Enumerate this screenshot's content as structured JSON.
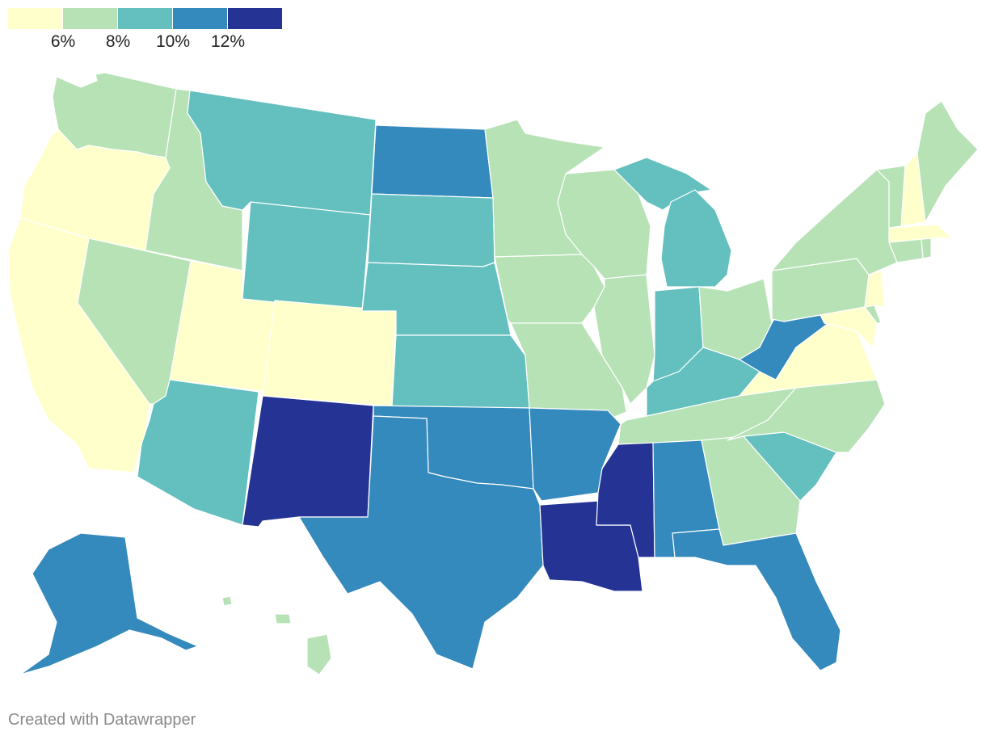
{
  "legend": {
    "colors": [
      "#ffffcc",
      "#b7e2b6",
      "#64bfbf",
      "#3489bd",
      "#253494"
    ],
    "tick_labels": [
      "6%",
      "8%",
      "10%",
      "12%"
    ]
  },
  "credit": "Created with Datawrapper",
  "states": [
    {
      "name": "Washington",
      "color": "#b7e2b6"
    },
    {
      "name": "Oregon",
      "color": "#ffffcc"
    },
    {
      "name": "California",
      "color": "#ffffcc"
    },
    {
      "name": "Idaho",
      "color": "#b7e2b6"
    },
    {
      "name": "Nevada",
      "color": "#b7e2b6"
    },
    {
      "name": "Utah",
      "color": "#ffffcc"
    },
    {
      "name": "Arizona",
      "color": "#64bfbf"
    },
    {
      "name": "Montana",
      "color": "#64bfbf"
    },
    {
      "name": "Wyoming",
      "color": "#64bfbf"
    },
    {
      "name": "Colorado",
      "color": "#ffffcc"
    },
    {
      "name": "New Mexico",
      "color": "#253494"
    },
    {
      "name": "North Dakota",
      "color": "#3489bd"
    },
    {
      "name": "South Dakota",
      "color": "#64bfbf"
    },
    {
      "name": "Nebraska",
      "color": "#64bfbf"
    },
    {
      "name": "Kansas",
      "color": "#64bfbf"
    },
    {
      "name": "Oklahoma",
      "color": "#3489bd"
    },
    {
      "name": "Texas",
      "color": "#3489bd"
    },
    {
      "name": "Minnesota",
      "color": "#b7e2b6"
    },
    {
      "name": "Iowa",
      "color": "#b7e2b6"
    },
    {
      "name": "Missouri",
      "color": "#b7e2b6"
    },
    {
      "name": "Arkansas",
      "color": "#3489bd"
    },
    {
      "name": "Louisiana",
      "color": "#253494"
    },
    {
      "name": "Wisconsin",
      "color": "#b7e2b6"
    },
    {
      "name": "Illinois",
      "color": "#b7e2b6"
    },
    {
      "name": "Michigan",
      "color": "#64bfbf"
    },
    {
      "name": "Indiana",
      "color": "#64bfbf"
    },
    {
      "name": "Ohio",
      "color": "#b7e2b6"
    },
    {
      "name": "Kentucky",
      "color": "#64bfbf"
    },
    {
      "name": "Tennessee",
      "color": "#b7e2b6"
    },
    {
      "name": "Mississippi",
      "color": "#253494"
    },
    {
      "name": "Alabama",
      "color": "#3489bd"
    },
    {
      "name": "Georgia",
      "color": "#b7e2b6"
    },
    {
      "name": "Florida",
      "color": "#3489bd"
    },
    {
      "name": "South Carolina",
      "color": "#64bfbf"
    },
    {
      "name": "North Carolina",
      "color": "#b7e2b6"
    },
    {
      "name": "Virginia",
      "color": "#ffffcc"
    },
    {
      "name": "West Virginia",
      "color": "#3489bd"
    },
    {
      "name": "Pennsylvania",
      "color": "#b7e2b6"
    },
    {
      "name": "New York",
      "color": "#b7e2b6"
    },
    {
      "name": "Maryland",
      "color": "#ffffcc"
    },
    {
      "name": "Delaware",
      "color": "#b7e2b6"
    },
    {
      "name": "New Jersey",
      "color": "#ffffcc"
    },
    {
      "name": "Connecticut",
      "color": "#b7e2b6"
    },
    {
      "name": "Rhode Island",
      "color": "#b7e2b6"
    },
    {
      "name": "Massachusetts",
      "color": "#ffffcc"
    },
    {
      "name": "Vermont",
      "color": "#b7e2b6"
    },
    {
      "name": "New Hampshire",
      "color": "#ffffcc"
    },
    {
      "name": "Maine",
      "color": "#b7e2b6"
    },
    {
      "name": "Alaska",
      "color": "#3489bd"
    },
    {
      "name": "Hawaii",
      "color": "#b7e2b6"
    }
  ]
}
